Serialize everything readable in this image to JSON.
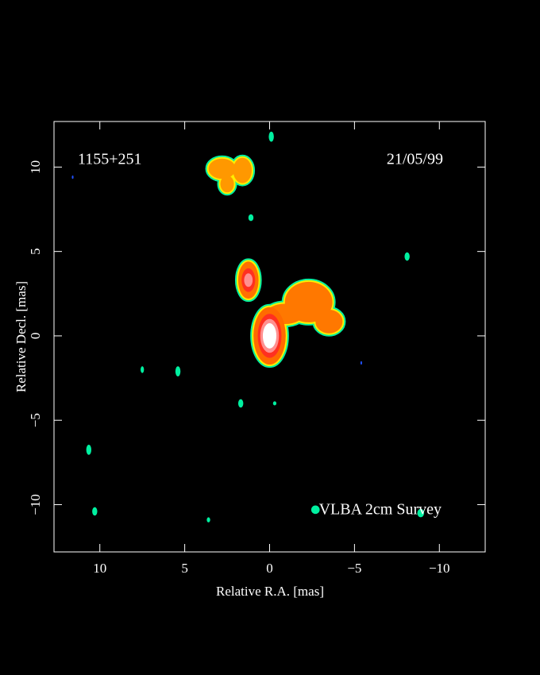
{
  "chart_data": {
    "type": "image",
    "source": "1155+251",
    "date": "21/05/99",
    "annotation": "VLBA 2cm Survey",
    "xlabel": "Relative R.A. [mas]",
    "ylabel": "Relative Decl. [mas]",
    "xlim": [
      12.7,
      -12.7
    ],
    "ylim": [
      -12.8,
      12.7
    ],
    "xticks": [
      10,
      5,
      0,
      {
        "value": -5,
        "label": "−5"
      },
      {
        "value": -10,
        "label": "−10"
      }
    ],
    "yticks": [
      {
        "value": -10,
        "label": "−10"
      },
      {
        "value": -5,
        "label": "−5"
      },
      0,
      5,
      10
    ],
    "edge_colors": [
      "#00f0a0",
      "#ffee00"
    ],
    "emission": [
      {
        "x": 2.8,
        "y": 9.9,
        "rx": 0.8,
        "ry": 0.6,
        "color": "#ff9800"
      },
      {
        "x": 1.6,
        "y": 9.8,
        "rx": 0.55,
        "ry": 0.75,
        "color": "#ff9800"
      },
      {
        "x": 2.5,
        "y": 9.0,
        "rx": 0.4,
        "ry": 0.5,
        "color": "#ff9800"
      },
      {
        "x": 1.25,
        "y": 3.3,
        "rx": 0.6,
        "ry": 1.1,
        "color": "#ff7000"
      },
      {
        "x": -0.9,
        "y": 1.3,
        "rx": 1.1,
        "ry": 0.6,
        "color": "#ff7800"
      },
      {
        "x": -2.3,
        "y": 2.0,
        "rx": 1.4,
        "ry": 1.2,
        "color": "#ff7800"
      },
      {
        "x": -3.5,
        "y": 0.85,
        "rx": 0.8,
        "ry": 0.7,
        "color": "#ff7800"
      },
      {
        "x": 0.0,
        "y": 0.0,
        "rx": 0.95,
        "ry": 1.7,
        "color": "#ff6a00"
      }
    ],
    "cores": [
      {
        "x": 1.25,
        "y": 3.3,
        "rx": 0.4,
        "ry": 0.7,
        "color": "#ff3020"
      },
      {
        "x": 1.25,
        "y": 3.3,
        "rx": 0.25,
        "ry": 0.4,
        "color": "#ff9090"
      },
      {
        "x": 0.0,
        "y": 0.0,
        "rx": 0.7,
        "ry": 1.3,
        "color": "#ff3020"
      },
      {
        "x": 0.0,
        "y": 0.0,
        "rx": 0.55,
        "ry": 1.0,
        "color": "#ff9090"
      },
      {
        "x": 0.0,
        "y": 0.0,
        "rx": 0.4,
        "ry": 0.75,
        "color": "#ffffff"
      }
    ],
    "specks": [
      {
        "x": -0.1,
        "y": 11.8,
        "rx": 0.15,
        "ry": 0.3,
        "color": "#00f0a0"
      },
      {
        "x": 1.1,
        "y": 7.0,
        "rx": 0.15,
        "ry": 0.2,
        "color": "#00f0a0"
      },
      {
        "x": -8.1,
        "y": 4.7,
        "rx": 0.15,
        "ry": 0.25,
        "color": "#00f0a0"
      },
      {
        "x": 7.5,
        "y": -2.0,
        "rx": 0.1,
        "ry": 0.2,
        "color": "#00f0a0"
      },
      {
        "x": 5.4,
        "y": -2.1,
        "rx": 0.15,
        "ry": 0.3,
        "color": "#00f0a0"
      },
      {
        "x": 1.7,
        "y": -4.0,
        "rx": 0.15,
        "ry": 0.25,
        "color": "#00f0a0"
      },
      {
        "x": -0.3,
        "y": -4.0,
        "rx": 0.1,
        "ry": 0.12,
        "color": "#00f0a0"
      },
      {
        "x": 10.65,
        "y": -6.75,
        "rx": 0.15,
        "ry": 0.3,
        "color": "#00f0a0"
      },
      {
        "x": 10.3,
        "y": -10.4,
        "rx": 0.15,
        "ry": 0.25,
        "color": "#00f0a0"
      },
      {
        "x": 3.6,
        "y": -10.9,
        "rx": 0.1,
        "ry": 0.15,
        "color": "#00f0a0"
      },
      {
        "x": -2.7,
        "y": -10.3,
        "rx": 0.25,
        "ry": 0.25,
        "color": "#00f0a0"
      },
      {
        "x": -8.9,
        "y": -10.5,
        "rx": 0.2,
        "ry": 0.25,
        "color": "#00f0a0"
      },
      {
        "x": 11.6,
        "y": 9.4,
        "rx": 0.05,
        "ry": 0.1,
        "color": "#2050ff"
      },
      {
        "x": -5.4,
        "y": -1.6,
        "rx": 0.05,
        "ry": 0.1,
        "color": "#2050ff"
      }
    ]
  }
}
